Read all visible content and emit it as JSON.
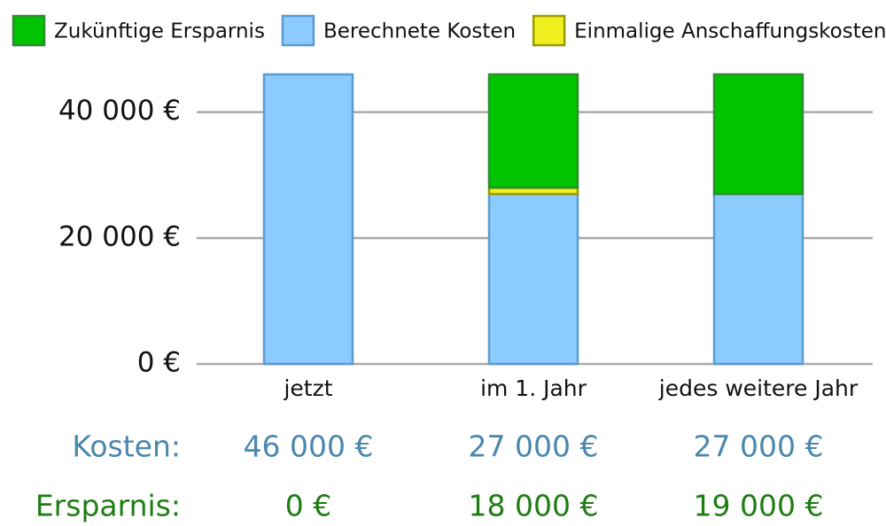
{
  "chart_data": {
    "type": "stacked_bar",
    "categories": [
      "jetzt",
      "im 1. Jahr",
      "jedes weitere Jahr"
    ],
    "series": [
      {
        "name": "Zukünftige Ersparnis",
        "color": "#00c400",
        "edge": "#2e8b2e",
        "values": [
          0,
          18000,
          19000
        ]
      },
      {
        "name": "Berechnete Kosten",
        "color": "#8ccbff",
        "edge": "#5a9bcf",
        "values": [
          46000,
          27000,
          27000
        ]
      },
      {
        "name": "Einmalige Anschaffungskosten",
        "color": "#f0f020",
        "edge": "#9a9a00",
        "values": [
          0,
          1000,
          0
        ]
      }
    ],
    "stack_order": [
      1,
      2,
      0
    ],
    "ylim": [
      0,
      46000
    ],
    "yticks": [
      {
        "value": 0,
        "label": "0 €"
      },
      {
        "value": 20000,
        "label": "20 000 €"
      },
      {
        "value": 40000,
        "label": "40 000 €"
      }
    ],
    "grid": true,
    "legend": "top",
    "summary": [
      {
        "label": "Kosten:",
        "color": "#4a87ad",
        "cells": [
          "46 000 €",
          "27 000 €",
          "27 000 €"
        ]
      },
      {
        "label": "Ersparnis:",
        "color": "#1d7d12",
        "cells": [
          "0 €",
          "18 000 €",
          "19 000 €"
        ]
      }
    ]
  }
}
